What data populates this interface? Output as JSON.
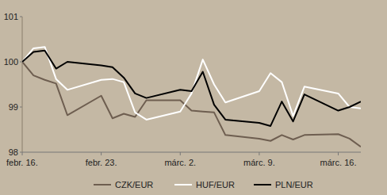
{
  "chart_data": {
    "type": "line",
    "x": [
      0,
      1,
      2,
      3,
      4,
      7,
      8,
      9,
      10,
      11,
      14,
      15,
      16,
      17,
      18,
      21,
      22,
      23,
      24,
      25,
      28,
      29,
      30
    ],
    "xlim": [
      0,
      30
    ],
    "xticks": [
      {
        "value": 0,
        "label": "febr. 16."
      },
      {
        "value": 7,
        "label": "febr. 23."
      },
      {
        "value": 14,
        "label": "márc. 2."
      },
      {
        "value": 21,
        "label": "márc. 9."
      },
      {
        "value": 28,
        "label": "márc. 16."
      }
    ],
    "ylim": [
      98,
      101
    ],
    "yticks": [
      98,
      99,
      100,
      101
    ],
    "grid": false,
    "legend": "bottom",
    "series": [
      {
        "name": "CZK/EUR",
        "color": "#6e5e50",
        "values": [
          100,
          99.7,
          99.6,
          99.52,
          98.82,
          99.25,
          98.75,
          98.85,
          98.78,
          99.15,
          99.15,
          98.92,
          98.9,
          98.88,
          98.38,
          98.3,
          98.25,
          98.38,
          98.28,
          98.38,
          98.4,
          98.3,
          98.12
        ]
      },
      {
        "name": "HUF/EUR",
        "color": "#ffffff",
        "values": [
          100,
          100.3,
          100.33,
          99.62,
          99.38,
          99.6,
          99.62,
          99.55,
          98.88,
          98.72,
          98.9,
          99.3,
          100.05,
          99.5,
          99.1,
          99.35,
          99.75,
          99.55,
          98.8,
          99.45,
          99.3,
          99.0,
          98.97
        ]
      },
      {
        "name": "PLN/EUR",
        "color": "#000000",
        "values": [
          100,
          100.22,
          100.25,
          99.85,
          100.0,
          99.92,
          99.88,
          99.65,
          99.3,
          99.2,
          99.38,
          99.35,
          99.78,
          99.05,
          98.72,
          98.65,
          98.58,
          99.12,
          98.68,
          99.28,
          98.92,
          99.0,
          99.12
        ]
      }
    ]
  }
}
